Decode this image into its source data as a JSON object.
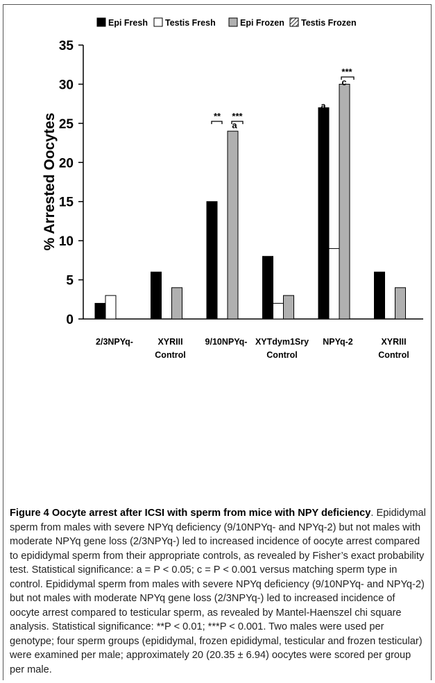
{
  "chart_data": {
    "type": "bar",
    "y_label": "% Arrested Oocytes",
    "categories": [
      [
        "2/3NPYq-"
      ],
      [
        "XYRIII",
        "Control"
      ],
      [
        "9/10NPYq-"
      ],
      [
        "XYTdym1Sry",
        "Control"
      ],
      [
        "NPYq-2"
      ],
      [
        "XYRIII",
        "Control"
      ]
    ],
    "series": [
      {
        "name": "Epi Fresh",
        "color": "#000000",
        "values": [
          2,
          6,
          15,
          8,
          27,
          6
        ]
      },
      {
        "name": "Testis Fresh",
        "color": "#ffffff",
        "values": [
          3,
          null,
          null,
          2,
          9,
          null
        ]
      },
      {
        "name": "Epi Frozen",
        "color": "#b0b0b0",
        "values": [
          null,
          4,
          24,
          3,
          30,
          4
        ]
      },
      {
        "name": "Testis Frozen",
        "color": "#ffffff",
        "hatch": true,
        "values": [
          null,
          null,
          null,
          null,
          null,
          null
        ]
      }
    ],
    "ylim": [
      0,
      35
    ],
    "yticks": [
      0,
      5,
      10,
      15,
      20,
      25,
      30,
      35
    ],
    "annotations": [
      "**",
      "***",
      "a",
      "a",
      "c",
      "***"
    ]
  },
  "caption": {
    "title": "Figure 4 Oocyte arrest after ICSI with sperm from mice with NPY deficiency",
    "text": ". Epididymal sperm from males with severe NPYq deficiency (9/10NPYq- and NPYq-2) but not males with moderate NPYq gene loss (2/3NPYq-) led to increased incidence of oocyte arrest compared to epididymal sperm from their appropriate controls, as revealed by Fisher’s exact probability test. Statistical significance: a = P < 0.05; c = P < 0.001 versus matching sperm type in control. Epididymal sperm from males with severe NPYq deficiency (9/10NPYq- and NPYq-2) but not males with moderate NPYq gene loss (2/3NPYq-) led to increased incidence of oocyte arrest compared to testicular sperm, as revealed by Mantel-Haenszel chi square analysis. Statistical significance: **P < 0.01; ***P < 0.001. Two males were used per genotype; four sperm groups (epididymal, frozen epididymal, testicular and frozen testicular) were examined per male; approximately 20 (20.35 ± 6.94) oocytes were scored per group per male."
  }
}
